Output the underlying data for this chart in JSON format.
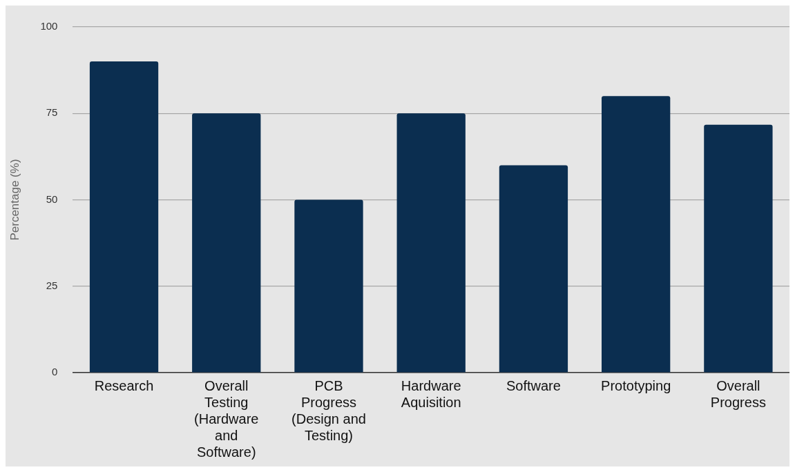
{
  "chart_data": {
    "type": "bar",
    "ylabel": "Percentage (%)",
    "categories": [
      "Research",
      "Overall Testing (Hardware and Software)",
      "PCB Progress (Design and Testing)",
      "Hardware Aquisition",
      "Software",
      "Prototyping",
      "Overall Progress"
    ],
    "values": [
      90,
      75,
      50,
      75,
      60,
      80,
      71.7
    ],
    "color": "#0b2e50",
    "ylim": [
      0,
      100
    ],
    "yticks": [
      0,
      25,
      50,
      75,
      100
    ],
    "grid": "y",
    "legend": false
  }
}
